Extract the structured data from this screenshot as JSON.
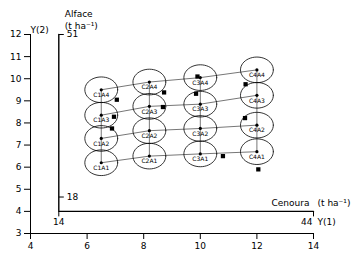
{
  "chart_data": {
    "type": "scatter",
    "xlim": [
      4,
      14
    ],
    "ylim": [
      3,
      12
    ],
    "xticks": [
      4,
      6,
      8,
      10,
      12,
      14
    ],
    "yticks": [
      3,
      4,
      5,
      6,
      7,
      8,
      9,
      10,
      11,
      12
    ],
    "ylabel": "Y(2)",
    "series": [
      {
        "type": "line",
        "marker": "circle",
        "x": [
          6.5,
          8.2,
          10.0,
          12.0
        ],
        "values": [
          6.2,
          6.5,
          6.6,
          6.7
        ],
        "labels": [
          "C1A1",
          "C2A1",
          "C3A1",
          "C4A1"
        ],
        "radius": 0.58
      },
      {
        "type": "line",
        "marker": "circle",
        "x": [
          6.5,
          8.2,
          10.0,
          12.0
        ],
        "values": [
          7.3,
          7.65,
          7.75,
          7.9
        ],
        "labels": [
          "C1A2",
          "C2A2",
          "C3A2",
          "C4A2"
        ],
        "radius": 0.58
      },
      {
        "type": "line",
        "marker": "circle",
        "x": [
          6.5,
          8.2,
          10.0,
          12.0
        ],
        "values": [
          8.35,
          8.75,
          8.85,
          9.25
        ],
        "labels": [
          "C1A3",
          "C2A3",
          "C3A3",
          "C4A3"
        ],
        "radius": 0.58
      },
      {
        "type": "line",
        "marker": "circle",
        "x": [
          6.5,
          8.2,
          10.0,
          12.0
        ],
        "values": [
          9.5,
          9.85,
          10.05,
          10.4
        ],
        "labels": [
          "C1A4",
          "C2A4",
          "C3A4",
          "C4A4"
        ],
        "radius": 0.58
      },
      {
        "type": "scatter",
        "marker": "square",
        "x": [
          7.05,
          6.95,
          6.88,
          8.72,
          8.68,
          9.9,
          9.85,
          11.6,
          11.58,
          10.8,
          12.05
        ],
        "values": [
          9.05,
          8.28,
          7.75,
          9.38,
          8.72,
          10.1,
          9.32,
          9.75,
          8.22,
          6.5,
          5.9
        ]
      }
    ],
    "extra_axis": {
      "xlim": [
        5.0,
        14.0
      ],
      "ylim": [
        4.0,
        12.0
      ],
      "yticks": [
        {
          "value": 12.0,
          "label": "51"
        },
        {
          "value": 4.65,
          "label": "18"
        }
      ],
      "xticks": [
        {
          "value": 5.0,
          "label": "14"
        },
        {
          "value": 14.0,
          "label": "44"
        }
      ],
      "xlabel": "Cenoura",
      "xunit": "(t ha⁻¹)",
      "x_title": "Y(1)",
      "ylabel": "Alface",
      "yunit": "(t ha⁻¹)"
    }
  }
}
